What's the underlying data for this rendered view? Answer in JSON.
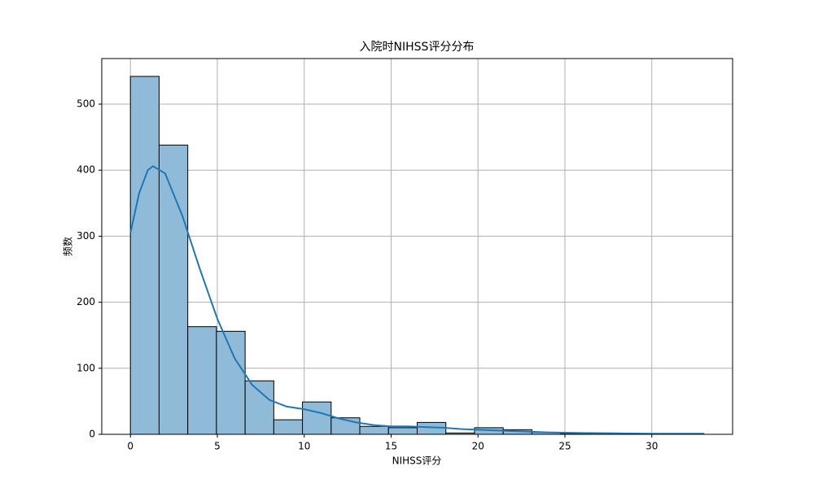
{
  "chart_data": {
    "type": "histogram",
    "title": "入院时NIHSS评分分布",
    "xlabel": "NIHSS评分",
    "ylabel": "频数",
    "bins": [
      0,
      1.65,
      3.3,
      4.95,
      6.6,
      8.25,
      9.9,
      11.55,
      13.2,
      14.85,
      16.5,
      18.15,
      19.8,
      21.45,
      23.1,
      24.75,
      26.4,
      28.05,
      29.7,
      31.35,
      33
    ],
    "values": [
      542,
      438,
      163,
      156,
      81,
      22,
      49,
      25,
      12,
      10,
      18,
      2,
      10,
      7,
      3,
      1,
      1,
      0,
      0,
      1
    ],
    "color": "#8fbbd9",
    "edgecolor": "#000000",
    "kde": {
      "x": [
        0,
        0.5,
        1,
        1.3,
        2,
        3,
        4,
        5,
        6,
        7,
        8,
        9,
        10,
        11,
        12,
        13,
        14,
        15,
        16,
        17,
        18,
        19,
        20,
        22,
        24,
        26,
        28,
        30,
        33
      ],
      "values": [
        305,
        365,
        400,
        406,
        395,
        330,
        250,
        175,
        115,
        75,
        52,
        42,
        38,
        32,
        24,
        18,
        14,
        12,
        12,
        11,
        10,
        8,
        7,
        5,
        3,
        2,
        1.5,
        1,
        1
      ],
      "color": "#1f77b4"
    },
    "xlim": [
      -1.65,
      34.65
    ],
    "ylim": [
      0,
      569
    ],
    "xticks": [
      0,
      5,
      10,
      15,
      20,
      25,
      30
    ],
    "yticks": [
      0,
      100,
      200,
      300,
      400,
      500
    ],
    "grid": true
  }
}
